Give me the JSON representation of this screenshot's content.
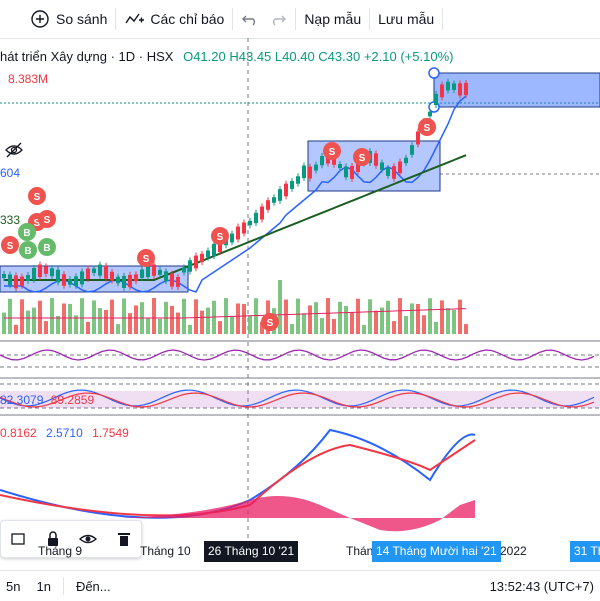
{
  "toolbar": {
    "compare_label": "So sánh",
    "indicators_label": "Các chỉ báo",
    "template_label": "Nạp mẫu",
    "save_label": "Lưu mẫu"
  },
  "legend": {
    "title": "hát triển Xây dựng · 1D · HSX",
    "open": "O41.20",
    "high": "H43.45",
    "low": "L40.40",
    "close": "C43.30",
    "change": "+2.10 (+5.10%)"
  },
  "labels": {
    "volume_value": "8.383M",
    "ma_value": "604",
    "ma2_value": "333",
    "stoch_values": [
      "82.3079",
      "89.2859"
    ],
    "macd_values": [
      "0.8162",
      "2.5710",
      "1.7549"
    ]
  },
  "markers": [
    "S",
    "S",
    "S",
    "S",
    "B",
    "B",
    "B",
    "S",
    "S",
    "S",
    "S",
    "S",
    "S"
  ],
  "time_axis": {
    "ticks": [
      "Tháng 9",
      "Tháng 10",
      "Thán",
      "2022",
      "31 Th"
    ],
    "crosshair_date": "26 Tháng 10 '21",
    "range_date": "14 Tháng Mười hai '21"
  },
  "status": {
    "intervals": [
      "5n",
      "1n"
    ],
    "goto_label": "Đến...",
    "clock": "13:52:43 (UTC+7)"
  },
  "colors": {
    "up": "#089981",
    "down": "#f23645",
    "accent": "#2962ff",
    "range_pill": "#2196f3"
  },
  "icons": [
    "plus-circle-icon",
    "indicator-icon",
    "undo-icon",
    "redo-icon",
    "eye-off-icon",
    "lock-icon",
    "eye-icon",
    "trash-icon",
    "rectangle-icon"
  ]
}
